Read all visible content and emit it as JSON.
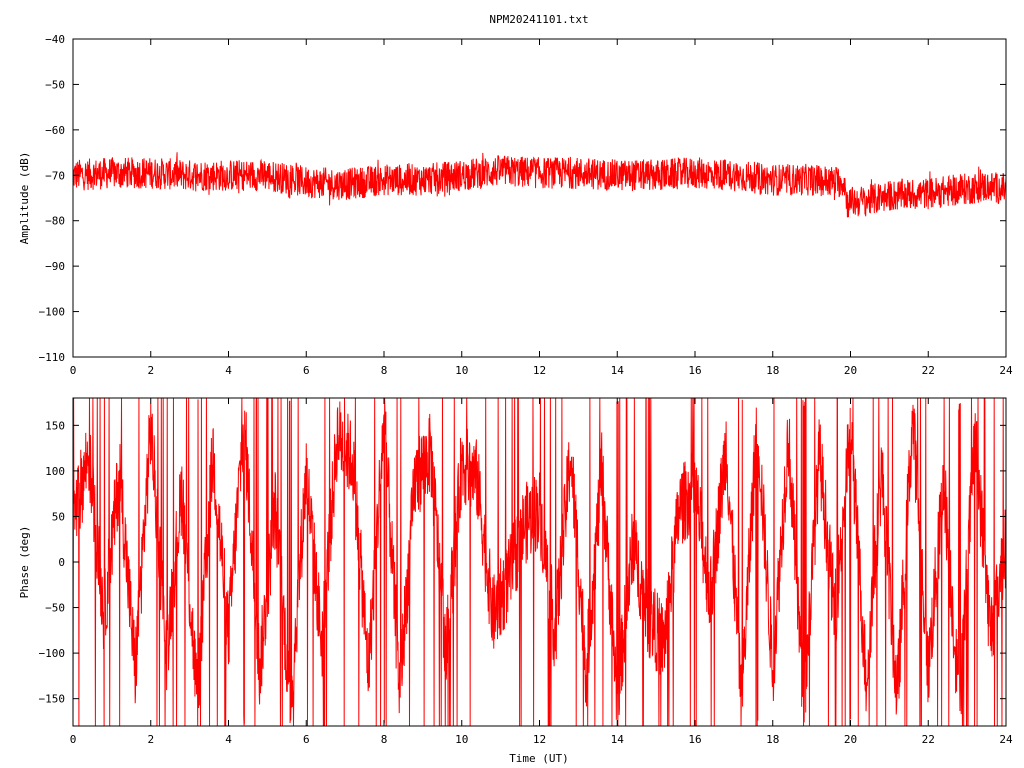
{
  "title": "NPM20241101.txt",
  "chart_data": [
    {
      "type": "line",
      "ylabel": "Amplitude (dB)",
      "xlabel": "",
      "xlim": [
        0,
        24
      ],
      "ylim": [
        -110,
        -40
      ],
      "x_ticks": [
        "0",
        "2",
        "4",
        "6",
        "8",
        "10",
        "12",
        "14",
        "16",
        "18",
        "20",
        "22",
        "24"
      ],
      "y_ticks": [
        "-40",
        "-50",
        "-60",
        "-70",
        "-80",
        "-90",
        "-100",
        "-110"
      ],
      "grid": false,
      "color": "#ff0000",
      "series": [
        {
          "description_of_shape": "noisy band",
          "x": [
            0,
            1,
            2,
            3,
            4,
            5,
            6,
            7,
            8,
            9,
            10,
            11,
            12,
            13,
            14,
            15,
            16,
            17,
            18,
            19,
            19.85,
            19.9,
            20.5,
            21,
            22,
            23,
            23.5,
            24
          ],
          "y_center": [
            -70,
            -69.5,
            -69.5,
            -70,
            -70,
            -70,
            -71.5,
            -72,
            -71,
            -71,
            -70,
            -69,
            -69.5,
            -69.5,
            -70,
            -70,
            -69.5,
            -70,
            -71,
            -71,
            -71.5,
            -76,
            -75.5,
            -74.5,
            -74,
            -73,
            -72.5,
            -73
          ],
          "y_spread": [
            3.5,
            3.5,
            3.5,
            3.5,
            3.5,
            3.5,
            3.5,
            3.5,
            3.5,
            3.5,
            3.5,
            3.5,
            3.5,
            3.5,
            3.5,
            3.5,
            3.5,
            3.5,
            3.5,
            3.5,
            3.5,
            3.5,
            3.5,
            3.5,
            3.5,
            3.5,
            3.5,
            3.5
          ]
        }
      ]
    },
    {
      "type": "line",
      "ylabel": "Phase (deg)",
      "xlabel": "Time (UT)",
      "xlim": [
        0,
        24
      ],
      "ylim": [
        -180,
        180
      ],
      "x_ticks": [
        "0",
        "2",
        "4",
        "6",
        "8",
        "10",
        "12",
        "14",
        "16",
        "18",
        "20",
        "22",
        "24"
      ],
      "y_ticks": [
        "150",
        "100",
        "50",
        "0",
        "-50",
        "-100",
        "-150"
      ],
      "grid": false,
      "color": "#ff0000",
      "series": [
        {
          "x": [
            0,
            0.4,
            0.8,
            1.2,
            1.6,
            2.0,
            2.4,
            2.8,
            3.2,
            3.6,
            4.0,
            4.4,
            4.8,
            5.2,
            5.6,
            6.0,
            6.4,
            6.8,
            7.2,
            7.6,
            8.0,
            8.4,
            8.8,
            9.2,
            9.6,
            10.0,
            10.4,
            10.8,
            11.2,
            11.6,
            12.0,
            12.4,
            12.8,
            13.2,
            13.6,
            14.0,
            14.4,
            14.8,
            15.2,
            15.6,
            16.0,
            16.4,
            16.8,
            17.2,
            17.6,
            18.0,
            18.4,
            18.8,
            19.2,
            19.6,
            20.0,
            20.4,
            20.8,
            21.2,
            21.6,
            22.0,
            22.4,
            22.8,
            23.2,
            23.6,
            24.0
          ],
          "y": [
            40,
            120,
            -60,
            100,
            -120,
            150,
            -100,
            80,
            -150,
            120,
            -80,
            160,
            -120,
            60,
            -160,
            100,
            -90,
            140,
            110,
            -120,
            160,
            -140,
            90,
            120,
            -100,
            110,
            90,
            -60,
            -20,
            40,
            60,
            -80,
            120,
            -120,
            100,
            -150,
            20,
            -60,
            -90,
            60,
            80,
            -40,
            130,
            -150,
            160,
            -120,
            140,
            -160,
            120,
            -60,
            150,
            -130,
            100,
            -150,
            160,
            -120,
            90,
            -160,
            140,
            -80,
            20
          ]
        }
      ]
    }
  ]
}
